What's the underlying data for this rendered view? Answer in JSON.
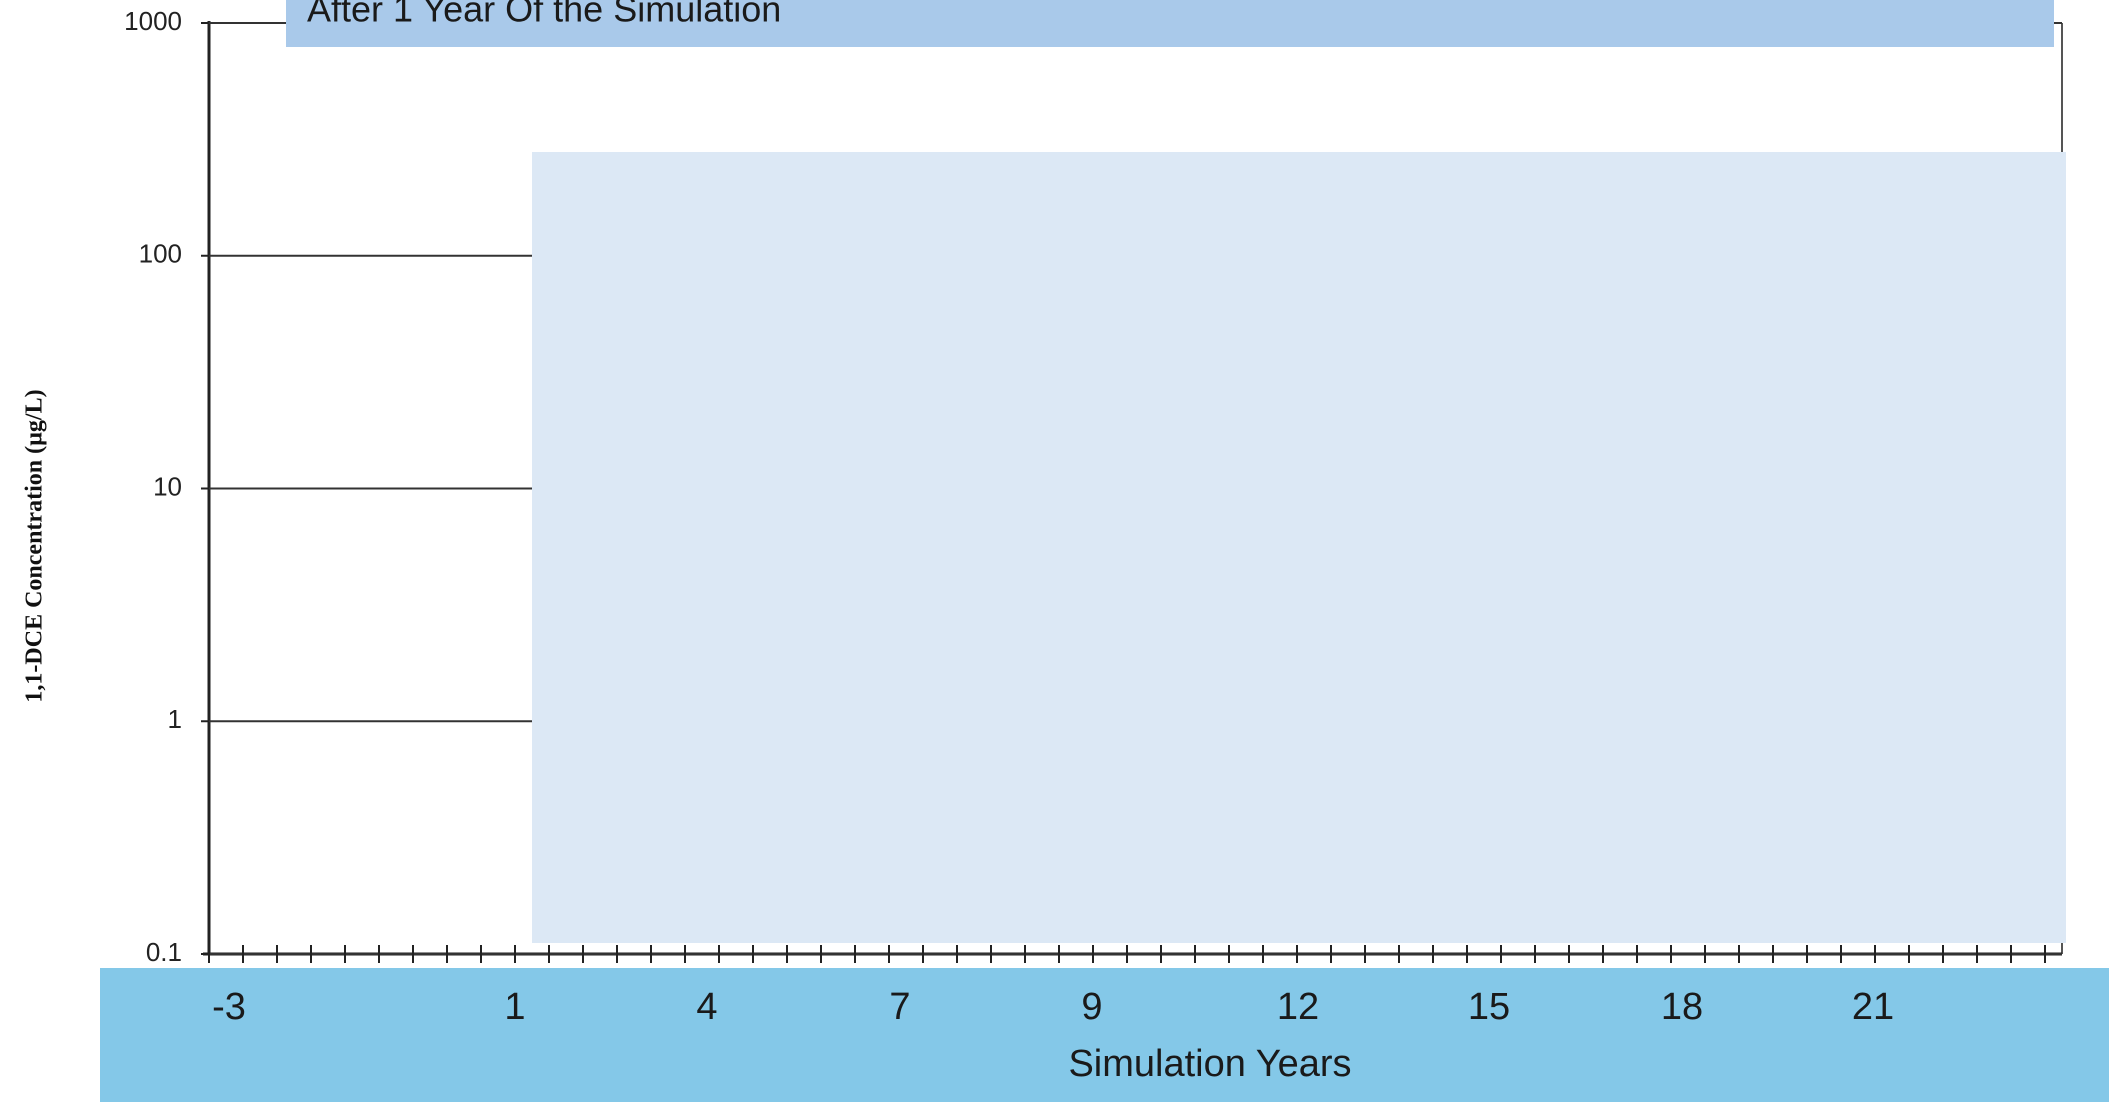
{
  "chart_data": {
    "type": "line",
    "title": "After 1 Year Of the Simulation",
    "ylabel": "1,1-DCE Concentration (µg/L)",
    "xlabel": "Simulation Years",
    "categories": [
      "-3",
      "1",
      "4",
      "7",
      "9",
      "12",
      "15",
      "18",
      "21"
    ],
    "ylim": [
      0.1,
      1000
    ],
    "yticks": [
      0.1,
      1,
      10,
      100,
      1000
    ],
    "log_y": true,
    "grid": true
  }
}
